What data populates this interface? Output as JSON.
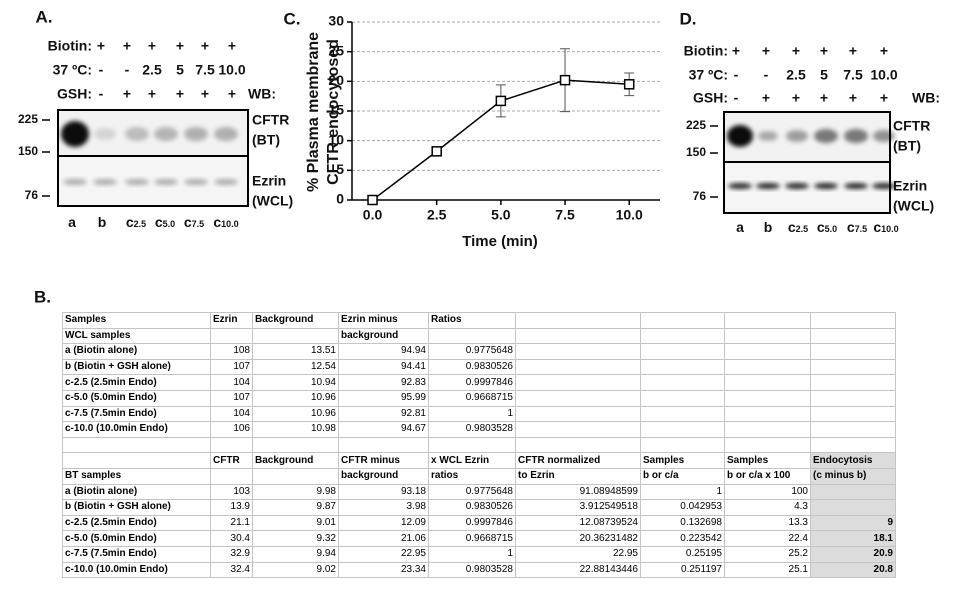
{
  "panel_a": {
    "label": "A.",
    "rows": [
      {
        "name": "Biotin:",
        "cells": [
          "+",
          "+",
          "+",
          "+",
          "+",
          "+"
        ]
      },
      {
        "name": "37 ºC:",
        "cells": [
          "-",
          "-",
          "2.5",
          "5",
          "7.5",
          "10.0"
        ]
      },
      {
        "name": "GSH:",
        "cells": [
          "-",
          "+",
          "+",
          "+",
          "+",
          "+"
        ]
      }
    ],
    "wb": "WB:",
    "markers": [
      "225",
      "150",
      "76"
    ],
    "bands": [
      [
        "CFTR",
        "(BT)"
      ],
      [
        "Ezrin",
        "(WCL)"
      ]
    ],
    "lanes": [
      {
        "name": "a"
      },
      {
        "name": "b"
      },
      {
        "name": "c",
        "sub": "2.5"
      },
      {
        "name": "c",
        "sub": "5.0"
      },
      {
        "name": "c",
        "sub": "7.5"
      },
      {
        "name": "c",
        "sub": "10.0"
      }
    ]
  },
  "chart_data": {
    "type": "line",
    "label": "C.",
    "ylabel": [
      "% Plasma membrane",
      "CFTR endocytosed"
    ],
    "xlabel": "Time (min)",
    "x": [
      0,
      2.5,
      5,
      7.5,
      10
    ],
    "values": [
      0,
      8.2,
      16.7,
      20.2,
      19.5
    ],
    "errors": [
      0,
      0.5,
      2.7,
      5.3,
      1.9
    ],
    "color": "#000000",
    "xlim": [
      -0.8,
      11.2
    ],
    "ylim": [
      0,
      30
    ],
    "xticks": [
      {
        "value": 0,
        "label": "0.0"
      },
      2.5,
      {
        "value": 5,
        "label": "5.0"
      },
      7.5,
      {
        "value": 10,
        "label": "10.0"
      }
    ],
    "yticks": [
      0,
      5,
      10,
      15,
      20,
      25,
      30
    ],
    "grid": true
  },
  "panel_d": {
    "label": "D.",
    "rows": [
      {
        "name": "Biotin:",
        "cells": [
          "+",
          "+",
          "+",
          "+",
          "+",
          "+"
        ]
      },
      {
        "name": "37 ºC:",
        "cells": [
          "-",
          "-",
          "2.5",
          "5",
          "7.5",
          "10.0"
        ]
      },
      {
        "name": "GSH:",
        "cells": [
          "-",
          "+",
          "+",
          "+",
          "+",
          "+"
        ]
      }
    ],
    "wb": "WB:",
    "markers": [
      "225",
      "150",
      "76"
    ],
    "bands": [
      [
        "CFTR",
        "(BT)"
      ],
      [
        "Ezrin",
        "(WCL)"
      ]
    ],
    "lanes": [
      {
        "name": "a"
      },
      {
        "name": "b"
      },
      {
        "name": "c",
        "sub": "2.5"
      },
      {
        "name": "c",
        "sub": "5.0"
      },
      {
        "name": "c",
        "sub": "7.5"
      },
      {
        "name": "c",
        "sub": "10.0"
      }
    ]
  },
  "panel_b": {
    "label": "B.",
    "table": {
      "rows": [
        [
          "Samples",
          "Ezrin",
          "Background",
          "Ezrin minus",
          "Ratios",
          null,
          null,
          null,
          null
        ],
        [
          "WCL samples",
          null,
          null,
          "background",
          null,
          null,
          null,
          null,
          null
        ],
        [
          "a (Biotin alone)",
          "108",
          "13.51",
          "94.94",
          "0.9775648",
          null,
          null,
          null,
          null
        ],
        [
          "b (Biotin + GSH alone)",
          "107",
          "12.54",
          "94.41",
          "0.9830526",
          null,
          null,
          null,
          null
        ],
        [
          "c-2.5 (2.5min Endo)",
          "104",
          "10.94",
          "92.83",
          "0.9997846",
          null,
          null,
          null,
          null
        ],
        [
          "c-5.0 (5.0min Endo)",
          "107",
          "10.96",
          "95.99",
          "0.9668715",
          null,
          null,
          null,
          null
        ],
        [
          "c-7.5 (7.5min Endo)",
          "104",
          "10.96",
          "92.81",
          "1",
          null,
          null,
          null,
          null
        ],
        [
          "c-10.0 (10.0min Endo)",
          "106",
          "10.98",
          "94.67",
          "0.9803528",
          null,
          null,
          null,
          null
        ],
        [
          null,
          null,
          null,
          null,
          null,
          null,
          null,
          null,
          null
        ],
        [
          null,
          "CFTR",
          "Background",
          "CFTR minus",
          "x WCL Ezrin",
          "CFTR  normalized",
          "Samples",
          "Samples",
          "Endocytosis"
        ],
        [
          "BT samples",
          null,
          null,
          "background",
          "ratios",
          "to Ezrin",
          "b or c/a",
          "b or c/a x 100",
          "(c minus b)"
        ],
        [
          "a (Biotin alone)",
          "103",
          "9.98",
          "93.18",
          "0.9775648",
          "91.08948599",
          "1",
          "100",
          null
        ],
        [
          "b (Biotin + GSH alone)",
          "13.9",
          "9.87",
          "3.98",
          "0.9830526",
          "3.912549518",
          "0.042953",
          "4.3",
          null
        ],
        [
          "c-2.5 (2.5min Endo)",
          "21.1",
          "9.01",
          "12.09",
          "0.9997846",
          "12.08739524",
          "0.132698",
          "13.3",
          "9"
        ],
        [
          "c-5.0 (5.0min Endo)",
          "30.4",
          "9.32",
          "21.06",
          "0.9668715",
          "20.36231482",
          "0.223542",
          "22.4",
          "18.1"
        ],
        [
          "c-7.5 (7.5min Endo)",
          "32.9",
          "9.94",
          "22.95",
          "1",
          "22.95",
          "0.25195",
          "25.2",
          "20.9"
        ],
        [
          "c-10.0 (10.0min Endo)",
          "32.4",
          "9.02",
          "23.34",
          "0.9803528",
          "22.88143446",
          "0.251197",
          "25.1",
          "20.8"
        ]
      ]
    }
  }
}
